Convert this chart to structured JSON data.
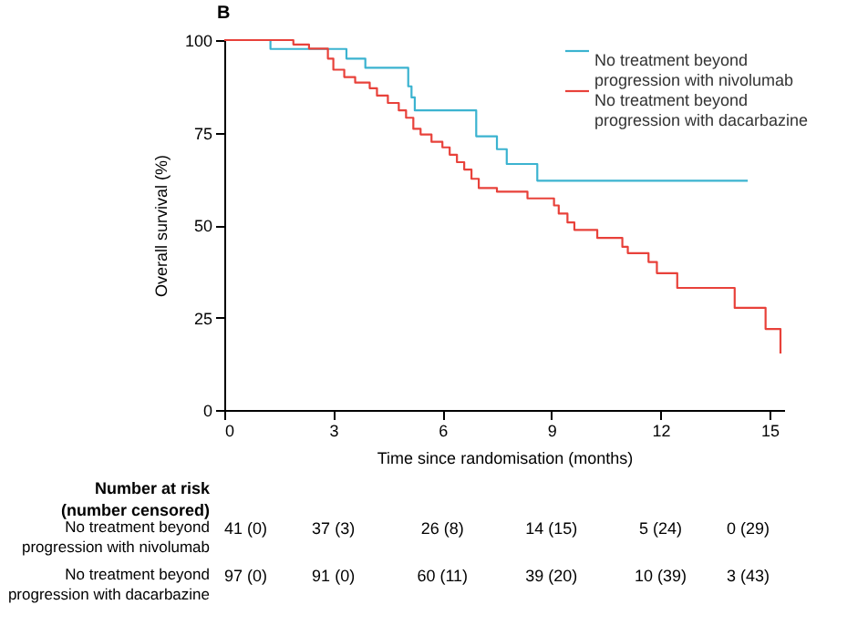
{
  "chart_data": {
    "type": "step",
    "title": "B",
    "xlabel": "Time since randomisation (months)",
    "ylabel": "Overall survival (%)",
    "xlim": [
      0,
      15.4
    ],
    "xticks": [
      0,
      3,
      6,
      9,
      12,
      15
    ],
    "ylim": [
      0,
      100
    ],
    "yticks": [
      0,
      25,
      50,
      75,
      100
    ],
    "grid": false,
    "legend": "top right",
    "series": [
      {
        "name": "No treatment beyond progression with nivolumab",
        "color": "#3bb3d0",
        "x": [
          0,
          1.27,
          3.36,
          3.88,
          5.06,
          5.15,
          5.24,
          6.93,
          7.5,
          7.77,
          8.61,
          14.4
        ],
        "values": [
          100,
          97.6,
          95,
          92.5,
          87.5,
          84.5,
          81,
          74,
          70.5,
          66.5,
          62,
          62
        ]
      },
      {
        "name": "No treatment beyond progression with dacarbazine",
        "color": "#e8413a",
        "x": [
          0,
          1.9,
          2.33,
          2.85,
          3.0,
          3.3,
          3.6,
          4.0,
          4.2,
          4.5,
          4.8,
          5.0,
          5.2,
          5.4,
          5.7,
          6.0,
          6.2,
          6.4,
          6.6,
          6.8,
          7.0,
          7.5,
          8.34,
          9.07,
          9.2,
          9.44,
          9.63,
          10.26,
          10.95,
          11.1,
          11.67,
          11.9,
          12.46,
          14.04,
          14.89,
          15.3
        ],
        "values": [
          100,
          98.8,
          97.7,
          95,
          92,
          90,
          88.5,
          87,
          85,
          83,
          81,
          79,
          76,
          74.5,
          72.5,
          71,
          69,
          67,
          65,
          62.5,
          60,
          59,
          57.2,
          55.3,
          53.1,
          50.7,
          48.7,
          46.5,
          44.1,
          42.4,
          40,
          37,
          33,
          27.6,
          21.9,
          15.3
        ]
      }
    ],
    "annotations": [
      "Number at risk",
      "(number censored)",
      "41 (0)",
      "37 (3)",
      "26 (8)",
      "14 (15)",
      "5 (24)",
      "0 (29)",
      "97 (0)",
      "91 (0)",
      "60 (11)",
      "39 (20)",
      "10 (39)",
      "3 (43)"
    ]
  }
}
